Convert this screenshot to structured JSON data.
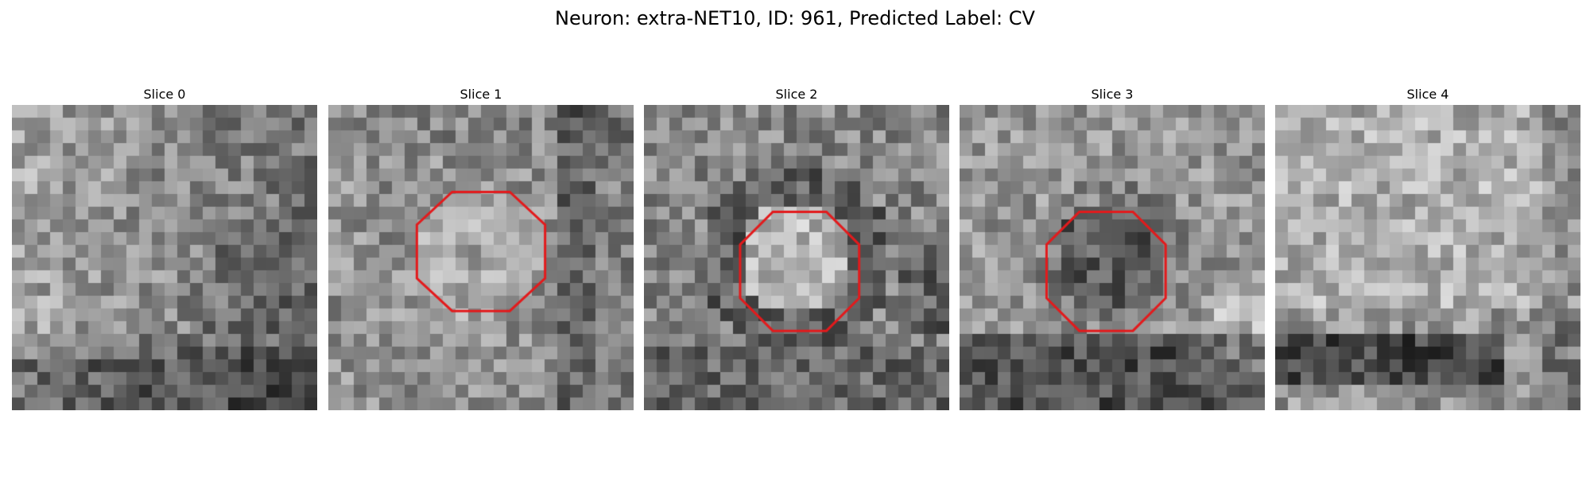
{
  "figure": {
    "title": "Neuron: extra-NET10, ID: 961, Predicted Label: CV",
    "contour_color": "#e31a1c"
  },
  "panels": [
    {
      "title": "Slice 0",
      "has_contour": false,
      "texture": "diffuse-dark-band-bottom"
    },
    {
      "title": "Slice 1",
      "has_contour": true,
      "texture": "bright-blob-center"
    },
    {
      "title": "Slice 2",
      "has_contour": true,
      "texture": "bright-blob-dark-ring"
    },
    {
      "title": "Slice 3",
      "has_contour": true,
      "texture": "dark-blob-center"
    },
    {
      "title": "Slice 4",
      "has_contour": false,
      "texture": "bright-top-dark-band-bottom"
    }
  ]
}
